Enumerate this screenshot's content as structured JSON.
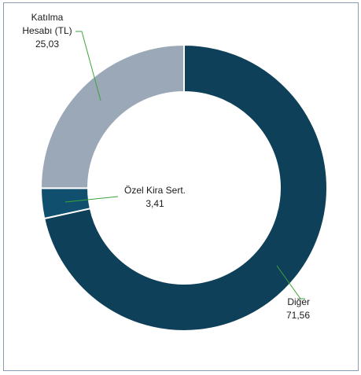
{
  "chart_data": {
    "type": "pie",
    "title": "",
    "slices": [
      {
        "name": "Diğer",
        "value": 71.56,
        "label_lines": [
          "Diğer"
        ],
        "value_label": "71,56",
        "color": "#0e4059"
      },
      {
        "name": "Özel Kira Sert.",
        "value": 3.41,
        "label_lines": [
          "Özel Kira Sert."
        ],
        "value_label": "3,41",
        "color": "#10506e"
      },
      {
        "name": "Katılma Hesabı (TL)",
        "value": 25.03,
        "label_lines": [
          "Katılma",
          "Hesabı (TL)"
        ],
        "value_label": "25,03",
        "color": "#9aa8b8"
      }
    ],
    "legend": "none",
    "leader_line_color": "#3aa53a"
  }
}
